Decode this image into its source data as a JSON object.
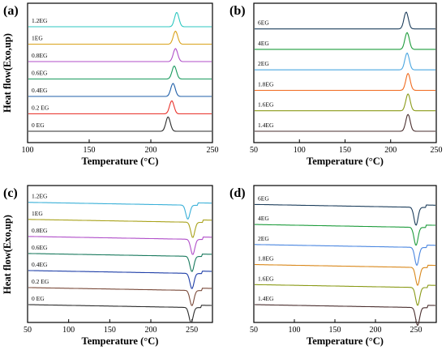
{
  "chart_data": [
    {
      "type": "line",
      "panel_label": "(a)",
      "xlabel": "Temperature (°C)",
      "ylabel": "Heat flow(Exo,up)",
      "xlim": [
        100,
        250
      ],
      "xticks": [
        100,
        150,
        200,
        250
      ],
      "legend_placement": "inline-left",
      "peak_direction": "up",
      "series": [
        {
          "name": "0 EG",
          "color": "#2b2b2b",
          "peak_x": 214,
          "peak_amp": 0.55
        },
        {
          "name": "0.2 EG",
          "color": "#e8322b",
          "peak_x": 217,
          "peak_amp": 0.5
        },
        {
          "name": "0.4EG",
          "color": "#1f5fa8",
          "peak_x": 218,
          "peak_amp": 0.5
        },
        {
          "name": "0.6EG",
          "color": "#1a9a5e",
          "peak_x": 219,
          "peak_amp": 0.5
        },
        {
          "name": "0.8EG",
          "color": "#b04fc9",
          "peak_x": 220,
          "peak_amp": 0.5
        },
        {
          "name": "1EG",
          "color": "#d9a21b",
          "peak_x": 220,
          "peak_amp": 0.5
        },
        {
          "name": "1.2EG",
          "color": "#2ec7c0",
          "peak_x": 221,
          "peak_amp": 0.55
        }
      ]
    },
    {
      "type": "line",
      "panel_label": "(b)",
      "xlabel": "Temperature (°C)",
      "ylabel": "",
      "xlim": [
        50,
        250
      ],
      "xticks": [
        50,
        100,
        150,
        200,
        250
      ],
      "legend_placement": "inline-left",
      "peak_direction": "up",
      "series": [
        {
          "name": "1.4EG",
          "color": "#4a2f2f",
          "peak_x": 219,
          "peak_amp": 0.55
        },
        {
          "name": "1.6EG",
          "color": "#8a9a17",
          "peak_x": 219,
          "peak_amp": 0.55
        },
        {
          "name": "1.8EG",
          "color": "#f06a1e",
          "peak_x": 219,
          "peak_amp": 0.55
        },
        {
          "name": "2EG",
          "color": "#4aa6e0",
          "peak_x": 218,
          "peak_amp": 0.55
        },
        {
          "name": "4EG",
          "color": "#1e9c3c",
          "peak_x": 218,
          "peak_amp": 0.55
        },
        {
          "name": "6EG",
          "color": "#1d3e5c",
          "peak_x": 217,
          "peak_amp": 0.55
        }
      ]
    },
    {
      "type": "line",
      "panel_label": "(c)",
      "xlabel": "Temperature (°C)",
      "ylabel": "Heat flow(Exo,up)",
      "xlim": [
        50,
        275
      ],
      "xticks": [
        50,
        100,
        150,
        200,
        250
      ],
      "legend_placement": "inline-left",
      "peak_direction": "down",
      "series": [
        {
          "name": "0 EG",
          "color": "#2b2b2b",
          "peak_x": 249,
          "peak_amp": 0.6
        },
        {
          "name": "0.2 EG",
          "color": "#7a4a3a",
          "peak_x": 250,
          "peak_amp": 0.6
        },
        {
          "name": "0.4EG",
          "color": "#1f3fa8",
          "peak_x": 250,
          "peak_amp": 0.6
        },
        {
          "name": "0.6EG",
          "color": "#1a7a5e",
          "peak_x": 250,
          "peak_amp": 0.6
        },
        {
          "name": "0.8EG",
          "color": "#b04fc9",
          "peak_x": 251,
          "peak_amp": 0.6
        },
        {
          "name": "1EG",
          "color": "#a9a21b",
          "peak_x": 251,
          "peak_amp": 0.6
        },
        {
          "name": "1.2EG",
          "color": "#3ab0d8",
          "peak_x": 245,
          "peak_amp": 0.55
        }
      ]
    },
    {
      "type": "line",
      "panel_label": "(d)",
      "xlabel": "Temperature (°C)",
      "ylabel": "",
      "xlim": [
        50,
        275
      ],
      "xticks": [
        50,
        100,
        150,
        200,
        250
      ],
      "legend_placement": "inline-left",
      "peak_direction": "down",
      "series": [
        {
          "name": "1.4EG",
          "color": "#4a2f2f",
          "peak_x": 252,
          "peak_amp": 0.6
        },
        {
          "name": "1.6EG",
          "color": "#8a9a17",
          "peak_x": 252,
          "peak_amp": 0.6
        },
        {
          "name": "1.8EG",
          "color": "#d9881b",
          "peak_x": 252,
          "peak_amp": 0.6
        },
        {
          "name": "2EG",
          "color": "#4a86e0",
          "peak_x": 251,
          "peak_amp": 0.6
        },
        {
          "name": "4EG",
          "color": "#1e9c3c",
          "peak_x": 250,
          "peak_amp": 0.6
        },
        {
          "name": "6EG",
          "color": "#1d3e5c",
          "peak_x": 250,
          "peak_amp": 0.6
        }
      ]
    }
  ]
}
